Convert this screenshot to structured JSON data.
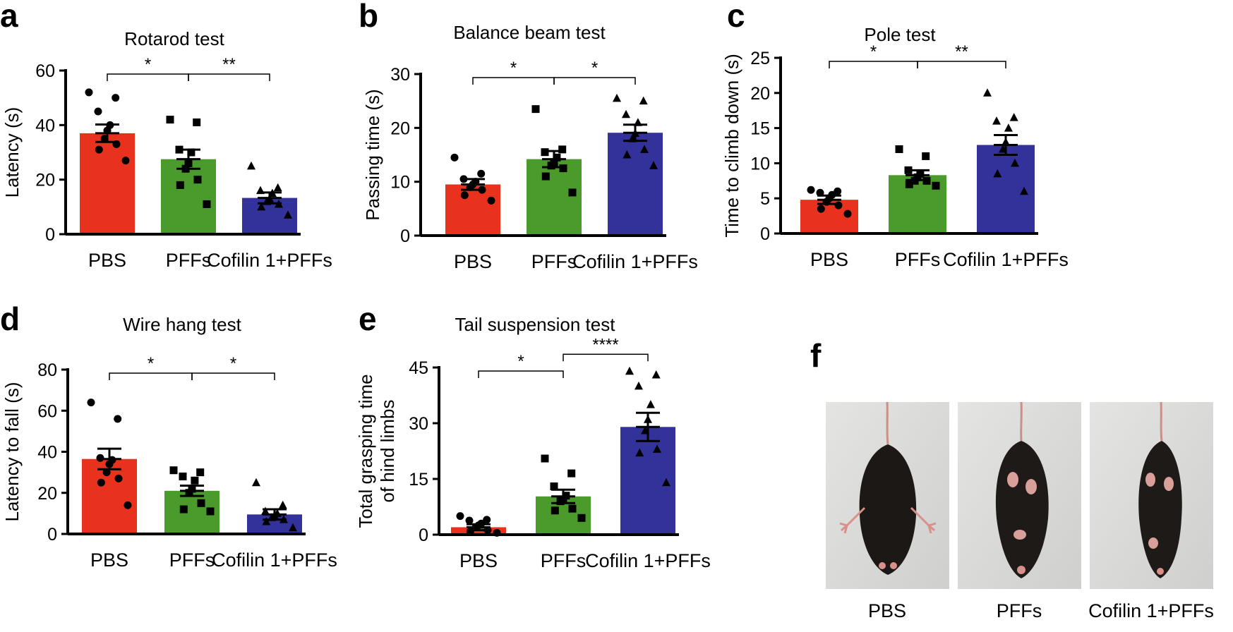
{
  "colors": {
    "PBS": "#e8321e",
    "PFFs": "#4b9a2c",
    "Cofilin 1+PFFs": "#33329a"
  },
  "chart_data": [
    {
      "panel": "a",
      "type": "bar",
      "title": "Rotarod test",
      "ylabel": "Latency (s)",
      "categories": [
        "PBS",
        "PFFs",
        "Cofilin 1+PFFs"
      ],
      "ylim": [
        0,
        60
      ],
      "yticks": [
        "0",
        "20",
        "40",
        "60"
      ],
      "values": [
        37,
        27.5,
        13.3
      ],
      "sem": [
        3.2,
        3.5,
        2.0
      ],
      "points": [
        [
          52,
          50,
          45,
          40,
          38,
          35,
          33,
          31,
          27
        ],
        [
          42,
          41,
          31,
          30,
          26,
          24,
          20,
          18,
          11
        ],
        [
          25,
          17,
          16,
          15,
          13,
          12,
          11,
          10,
          7
        ]
      ],
      "markers": [
        "circle",
        "square",
        "triangle"
      ],
      "significance": [
        {
          "from": 0,
          "to": 1,
          "label": "*"
        },
        {
          "from": 1,
          "to": 2,
          "label": "**"
        }
      ]
    },
    {
      "panel": "b",
      "type": "bar",
      "title": "Balance beam test",
      "ylabel": "Passing time (s)",
      "categories": [
        "PBS",
        "PFFs",
        "Cofilin 1+PFFs"
      ],
      "ylim": [
        0,
        30
      ],
      "yticks": [
        "0",
        "10",
        "20",
        "30"
      ],
      "values": [
        9.5,
        14.2,
        19.1
      ],
      "sem": [
        1.0,
        1.5,
        1.5
      ],
      "points": [
        [
          14.5,
          11.5,
          10.5,
          10,
          9.5,
          9,
          8.5,
          7.5,
          6.5
        ],
        [
          23.5,
          16,
          15.5,
          14.5,
          13.5,
          13,
          12.5,
          11,
          8
        ],
        [
          25.5,
          25,
          22.5,
          21,
          19,
          18,
          16,
          15,
          13
        ]
      ],
      "markers": [
        "circle",
        "square",
        "triangle"
      ],
      "significance": [
        {
          "from": 0,
          "to": 1,
          "label": "*"
        },
        {
          "from": 1,
          "to": 2,
          "label": "*"
        }
      ]
    },
    {
      "panel": "c",
      "type": "bar",
      "title": "Pole test",
      "ylabel": "Time to climb down (s)",
      "categories": [
        "PBS",
        "PFFs",
        "Cofilin 1+PFFs"
      ],
      "ylim": [
        0,
        25
      ],
      "yticks": [
        "0",
        "5",
        "10",
        "15",
        "20",
        "25"
      ],
      "values": [
        4.8,
        8.3,
        12.6
      ],
      "sem": [
        0.6,
        0.7,
        1.4
      ],
      "points": [
        [
          6.2,
          6,
          5.8,
          5.5,
          5,
          4.5,
          4,
          3.5,
          2.8
        ],
        [
          12,
          11,
          9,
          8.5,
          8,
          7.5,
          7.5,
          7,
          6.8
        ],
        [
          20,
          16.5,
          16,
          15,
          13,
          12,
          10,
          8.5,
          6
        ]
      ],
      "markers": [
        "circle",
        "square",
        "triangle"
      ],
      "significance": [
        {
          "from": 0,
          "to": 1,
          "label": "*"
        },
        {
          "from": 1,
          "to": 2,
          "label": "**"
        }
      ]
    },
    {
      "panel": "d",
      "type": "bar",
      "title": "Wire hang test",
      "ylabel": "Latency to fall (s)",
      "categories": [
        "PBS",
        "PFFs",
        "Cofilin 1+PFFs"
      ],
      "ylim": [
        0,
        80
      ],
      "yticks": [
        "0",
        "20",
        "40",
        "60",
        "80"
      ],
      "values": [
        36.5,
        21,
        9.5
      ],
      "sem": [
        5,
        2.5,
        2.5
      ],
      "points": [
        [
          64,
          56,
          37,
          36,
          34,
          30,
          27,
          25,
          14
        ],
        [
          31,
          30,
          28,
          26,
          22,
          20,
          15,
          12,
          11
        ],
        [
          25,
          14,
          11,
          10,
          9,
          8,
          7,
          6,
          3
        ]
      ],
      "markers": [
        "circle",
        "square",
        "triangle"
      ],
      "significance": [
        {
          "from": 0,
          "to": 1,
          "label": "*"
        },
        {
          "from": 1,
          "to": 2,
          "label": "*"
        }
      ]
    },
    {
      "panel": "e",
      "type": "bar",
      "title": "Tail suspension test",
      "ylabel_lines": [
        "Total grasping time",
        "of hind limbs"
      ],
      "categories": [
        "PBS",
        "PFFs",
        "Cofilin 1+PFFs"
      ],
      "ylim": [
        0,
        45
      ],
      "yticks": [
        "0",
        "15",
        "30",
        "45"
      ],
      "values": [
        2,
        10.3,
        29
      ],
      "sem": [
        0.8,
        1.8,
        3.8
      ],
      "points": [
        [
          5,
          4,
          3.8,
          3,
          2.5,
          2,
          1.2,
          0.8,
          0.5
        ],
        [
          20.5,
          16.5,
          13,
          10.5,
          9.5,
          9,
          7,
          6.5,
          4.5
        ],
        [
          44,
          43,
          40,
          35,
          31,
          28,
          23,
          22,
          14
        ]
      ],
      "markers": [
        "circle",
        "square",
        "triangle"
      ],
      "significance": [
        {
          "from": 0,
          "to": 1,
          "label": "*"
        },
        {
          "from": 1,
          "to": 2,
          "label": "****"
        }
      ]
    }
  ],
  "panel_f": {
    "letter": "f",
    "labels": [
      "PBS",
      "PFFs",
      "Cofilin 1+PFFs"
    ]
  }
}
